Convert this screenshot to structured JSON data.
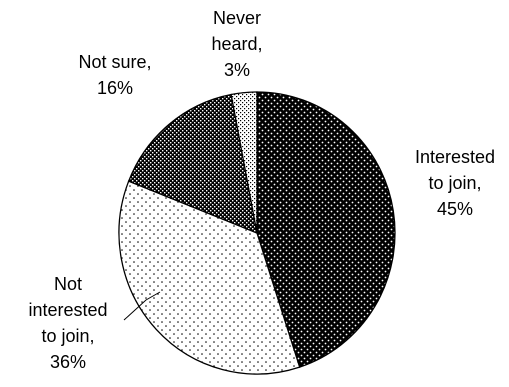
{
  "chart_data": {
    "type": "pie",
    "title": "",
    "start_angle_deg": 0,
    "direction": "clockwise",
    "slices": [
      {
        "label_lines": [
          "Interested",
          "to join,",
          "45%"
        ],
        "label": "Interested to join",
        "value": 45,
        "pattern": "dense-dots"
      },
      {
        "label_lines": [
          "Not",
          "interested",
          "to join,",
          "36%"
        ],
        "label": "Not interested to join",
        "value": 36,
        "pattern": "sparse-dots"
      },
      {
        "label_lines": [
          "Not sure,",
          "16%"
        ],
        "label": "Not sure",
        "value": 16,
        "pattern": "checker-dots"
      },
      {
        "label_lines": [
          "Never",
          "heard,",
          "3%"
        ],
        "label": "Never heard",
        "value": 3,
        "pattern": "fine-dots"
      }
    ]
  }
}
